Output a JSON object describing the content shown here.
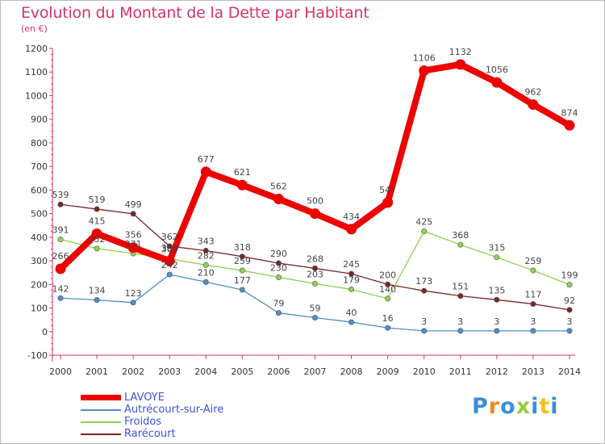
{
  "header": {
    "title": "Evolution du Montant de la Dette par Habitant",
    "subtitle": "(en €)"
  },
  "brand": {
    "text": "Proxiti",
    "letter_colors": [
      "#3a8fd8",
      "#f08a24",
      "#3a8fd8",
      "#9bcc3b",
      "#3a8fd8",
      "#f0c419",
      "#3a8fd8"
    ]
  },
  "chart_data": {
    "type": "line",
    "x": [
      "2000",
      "2001",
      "2002",
      "2003",
      "2004",
      "2005",
      "2006",
      "2007",
      "2008",
      "2009",
      "2010",
      "2011",
      "2012",
      "2013",
      "2014"
    ],
    "ylim": [
      -100,
      1200
    ],
    "yticks": [
      "-100",
      "0",
      "100",
      "200",
      "300",
      "400",
      "500",
      "600",
      "700",
      "800",
      "900",
      "1000",
      "1100",
      "1200"
    ],
    "grid": false,
    "legend_position": "bottom-left",
    "series": [
      {
        "name": "LAVOYE",
        "color": "#ee0000",
        "values": [
          266,
          415,
          356,
          300,
          677,
          621,
          562,
          500,
          434,
          547,
          1106,
          1132,
          1056,
          962,
          874
        ],
        "labels": [
          "266",
          "415",
          "356",
          "300",
          "677",
          "621",
          "562",
          "500",
          "434",
          "547",
          "1106",
          "1132",
          "1056",
          "962",
          "874"
        ]
      },
      {
        "name": "Autrécourt-sur-Aire",
        "color": "#4f8fc8",
        "values": [
          142,
          134,
          123,
          242,
          210,
          177,
          79,
          59,
          40,
          16,
          3,
          3,
          3,
          3,
          3
        ],
        "labels": [
          "142",
          "134",
          "123",
          "242",
          "210",
          "177",
          "79",
          "59",
          "40",
          "16",
          "3",
          "3",
          "3",
          "3",
          "3"
        ]
      },
      {
        "name": "Froidos",
        "color": "#8fd24e",
        "values": [
          391,
          352,
          331,
          309,
          282,
          259,
          230,
          203,
          179,
          140,
          425,
          368,
          315,
          259,
          199
        ],
        "labels": [
          "391",
          "352",
          "331",
          "309",
          "282",
          "259",
          "230",
          "203",
          "179",
          "140",
          "425",
          "368",
          "315",
          "259",
          "199"
        ]
      },
      {
        "name": "Rarécourt",
        "color": "#7a2626",
        "values": [
          539,
          519,
          499,
          362,
          343,
          318,
          290,
          268,
          245,
          200,
          173,
          151,
          135,
          117,
          92
        ],
        "labels": [
          "539",
          "519",
          "499",
          "362",
          "343",
          "318",
          "290",
          "268",
          "245",
          "200",
          "173",
          "151",
          "135",
          "117",
          "92"
        ]
      }
    ]
  }
}
